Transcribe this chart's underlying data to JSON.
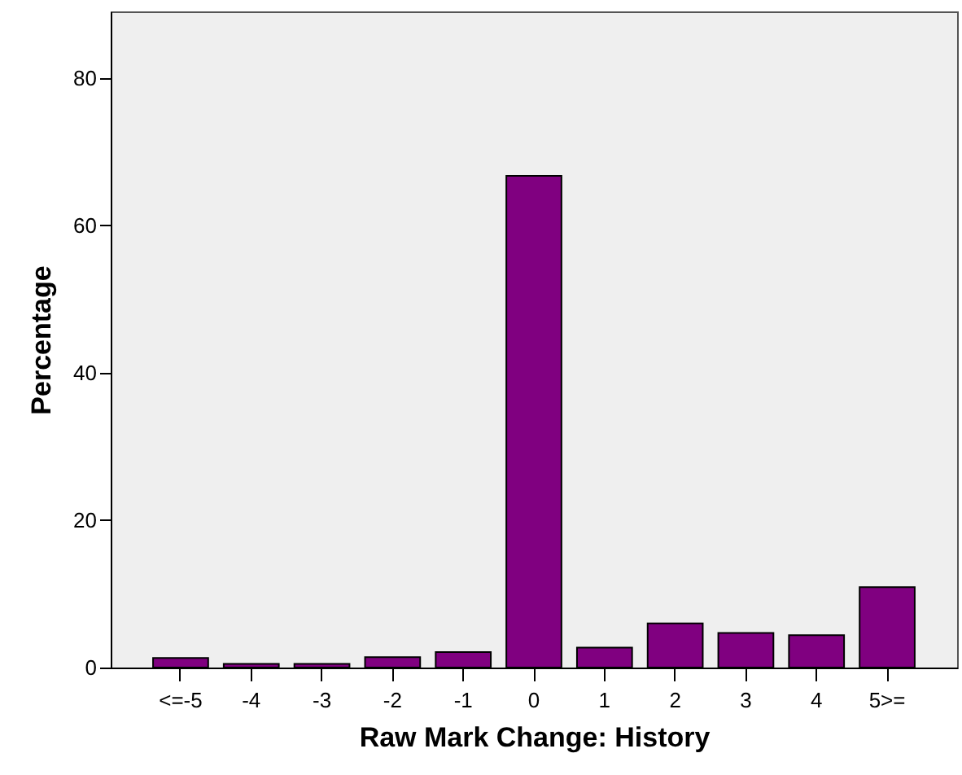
{
  "chart_data": {
    "type": "bar",
    "xlabel": "Raw Mark Change: History",
    "ylabel": "Percentage",
    "categories": [
      "<=-5",
      "-4",
      "-3",
      "-2",
      "-1",
      "0",
      "1",
      "2",
      "3",
      "4",
      "5>="
    ],
    "values": [
      1.3,
      0.5,
      0.5,
      1.4,
      2.1,
      66.7,
      2.7,
      6.0,
      4.7,
      4.4,
      10.9
    ],
    "color": "#800080",
    "ylim": [
      0,
      89
    ],
    "yticks": [
      0,
      20,
      40,
      60,
      80
    ],
    "grid": false
  }
}
